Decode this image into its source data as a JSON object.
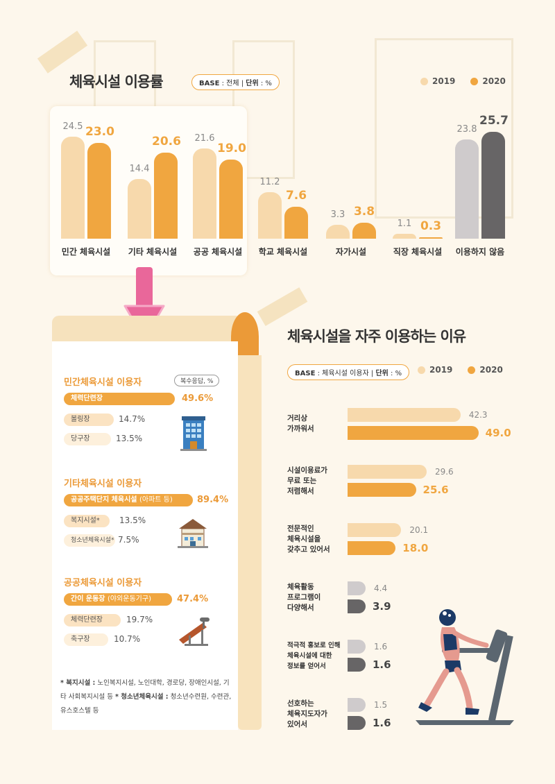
{
  "colors": {
    "c2019": "#f7d9ac",
    "c2020": "#f0a640",
    "grey2019": "#cfcbcc",
    "grey2020": "#676566",
    "pink": "#e9679a"
  },
  "chart_data": [
    {
      "type": "bar",
      "title": "체육시설 이용률",
      "base_label": "BASE",
      "base_value": "전체",
      "unit_label": "단위",
      "unit_value": "%",
      "categories": [
        "민간 체육시설",
        "기타 체육시설",
        "공공 체육시설",
        "학교 체육시설",
        "자가시설",
        "직장 체육시설",
        "이용하지 않음"
      ],
      "series": [
        {
          "name": "2019",
          "values": [
            24.5,
            14.4,
            21.6,
            11.2,
            3.3,
            1.1,
            23.8
          ]
        },
        {
          "name": "2020",
          "values": [
            23.0,
            20.6,
            19.0,
            7.6,
            3.8,
            0.3,
            25.7
          ]
        }
      ],
      "ylim": [
        0,
        30
      ]
    },
    {
      "type": "bar",
      "orientation": "horizontal",
      "title": "체육시설을 자주 이용하는 이유",
      "base_label": "BASE",
      "base_value": "체육시설 이용자",
      "unit_label": "단위",
      "unit_value": "%",
      "categories": [
        [
          "거리상",
          "가까워서"
        ],
        [
          "시설이용료가",
          "무료 또는",
          "저렴해서"
        ],
        [
          "전문적인",
          "체육시설을",
          "갖추고 있어서"
        ],
        [
          "체육활동",
          "프로그램이",
          "다양해서"
        ],
        [
          "적극적 홍보로 인해",
          "체육시설에 대한",
          "정보를 얻어서"
        ],
        [
          "선호하는",
          "체육지도자가",
          "있어서"
        ]
      ],
      "series": [
        {
          "name": "2019",
          "values": [
            42.3,
            29.6,
            20.1,
            4.4,
            1.6,
            1.5
          ]
        },
        {
          "name": "2020",
          "values": [
            49.0,
            25.6,
            18.0,
            3.9,
            1.6,
            1.6
          ]
        }
      ],
      "xlim": [
        0,
        55
      ]
    }
  ],
  "display": {
    "v2019": [
      "24.5",
      "14.4",
      "21.6",
      "11.2",
      "3.3",
      "1.1",
      "23.8"
    ],
    "v2020": [
      "23.0",
      "20.6",
      "19.0",
      "7.6",
      "3.8",
      "0.3",
      "25.7"
    ],
    "h2019": [
      "42.3",
      "29.6",
      "20.1",
      "4.4",
      "1.6",
      "1.5"
    ],
    "h2020": [
      "49.0",
      "25.6",
      "18.0",
      "3.9",
      "1.6",
      "1.6"
    ]
  },
  "legend": {
    "y2019": "2019",
    "y2020": "2020"
  },
  "panel": {
    "multi_note": "복수응답, %",
    "groups": [
      {
        "title": "민간체육시설 이용자",
        "items": [
          {
            "label": "체력단련장",
            "value": "49.6%"
          },
          {
            "label": "볼링장",
            "value": "14.7%"
          },
          {
            "label": "당구장",
            "value": "13.5%"
          }
        ],
        "icon": "office-building-icon"
      },
      {
        "title": "기타체육시설 이용자",
        "items": [
          {
            "label": "공공주택단지 체육시설",
            "sub": "(아파트 등)",
            "value": "89.4%"
          },
          {
            "label": "복지시설*",
            "value": "13.5%"
          },
          {
            "label": "청소년체육시설*",
            "value": "7.5%"
          }
        ],
        "icon": "house-icon"
      },
      {
        "title": "공공체육시설 이용자",
        "items": [
          {
            "label": "간이 운동장",
            "sub": "(야외운동기구)",
            "value": "47.4%"
          },
          {
            "label": "체력단련장",
            "value": "19.7%"
          },
          {
            "label": "축구장",
            "value": "10.7%"
          }
        ],
        "icon": "exercise-bench-icon"
      }
    ],
    "footnote_bold1": "* 복지시설 :",
    "footnote_text1": " 노인복지시설, 노인대학, 경로당, 장애인시설, 기타 사회복지시설 등 ",
    "footnote_bold2": "* 청소년체육시설 :",
    "footnote_text2": " 청소년수련원, 수련관, 유스호스텔 등"
  }
}
